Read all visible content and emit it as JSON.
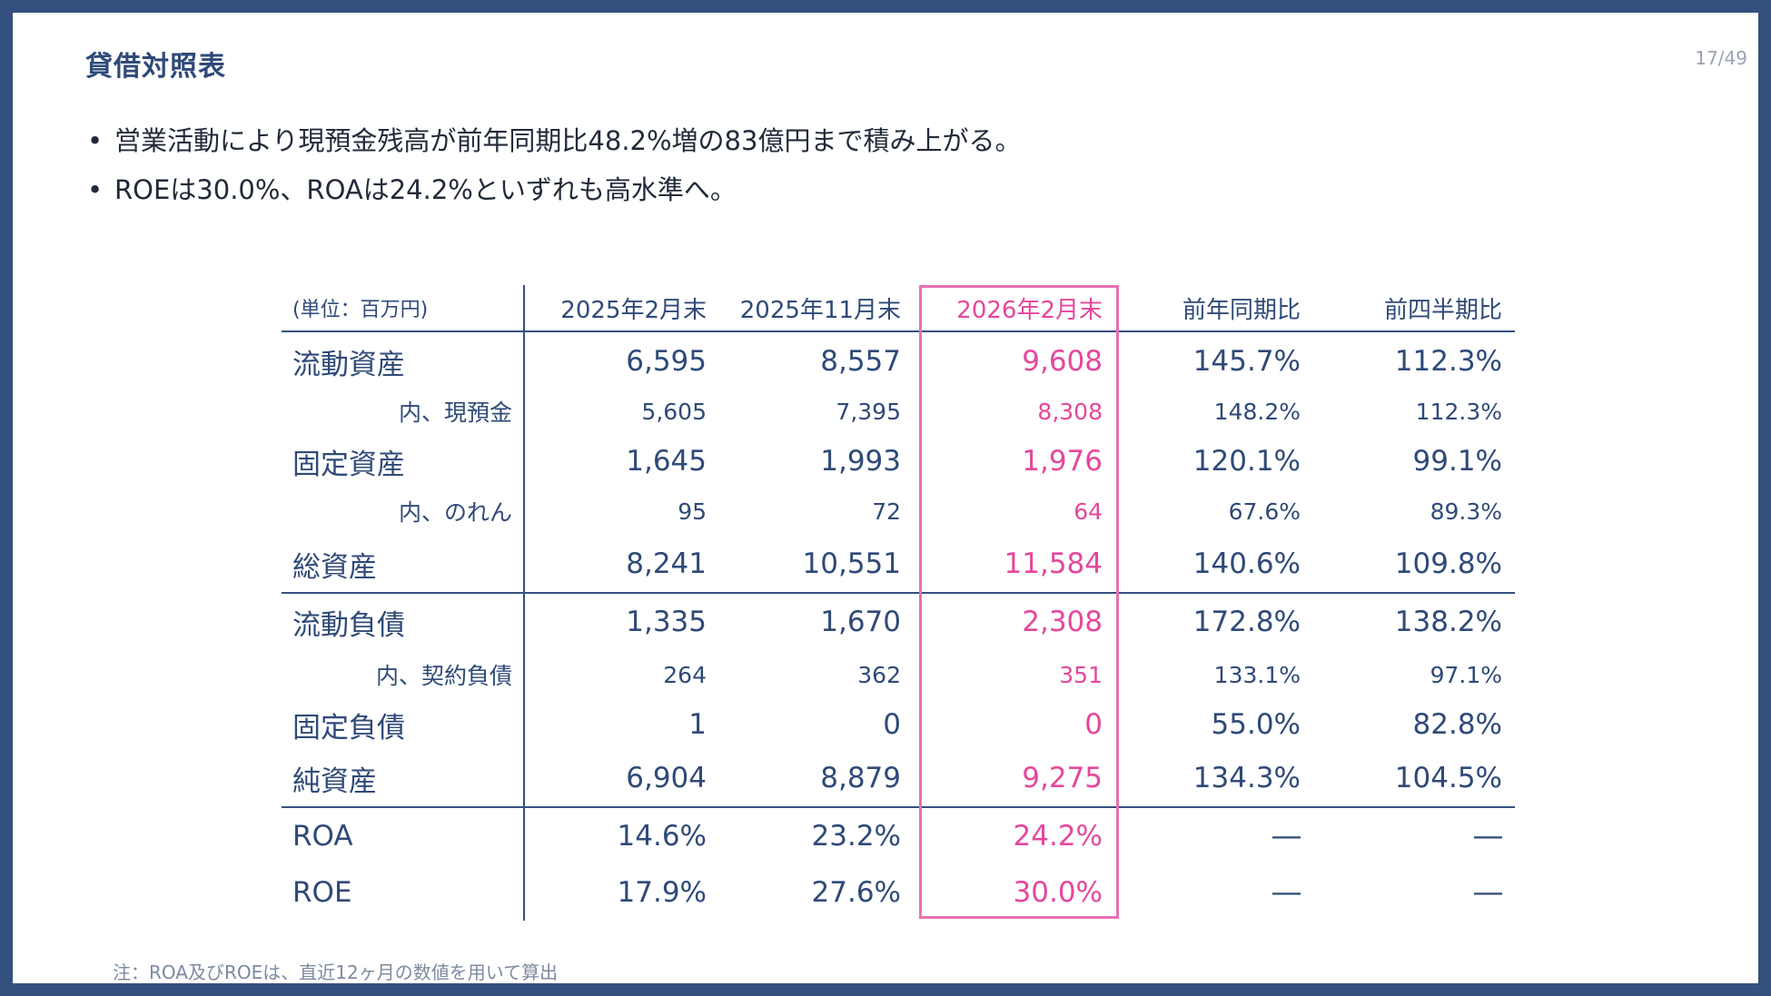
{
  "slide": {
    "title": "貸借対照表",
    "page_number": "17/49",
    "bullets": [
      "営業活動により現預金残高が前年同期比48.2%増の83億円まで積み上がる。",
      "ROEは30.0%、ROAは24.2%といずれも高水準へ。"
    ],
    "bullet_symbol": "•",
    "note": "注：ROA及びROEは、直近12ヶ月の数値を用いて算出"
  },
  "table": {
    "headers": [
      "(単位：百万円)",
      "2025年2月末",
      "2025年11月末",
      "2026年2月末",
      "前年同期比",
      "前四半期比"
    ],
    "rows": [
      {
        "label": "流動資産",
        "v1": "6,595",
        "v2": "8,557",
        "v3": "9,608",
        "yoy": "145.7%",
        "qoq": "112.3%"
      },
      {
        "label": "内、現預金",
        "v1": "5,605",
        "v2": "7,395",
        "v3": "8,308",
        "yoy": "148.2%",
        "qoq": "112.3%"
      },
      {
        "label": "固定資産",
        "v1": "1,645",
        "v2": "1,993",
        "v3": "1,976",
        "yoy": "120.1%",
        "qoq": "99.1%"
      },
      {
        "label": "内、のれん",
        "v1": "95",
        "v2": "72",
        "v3": "64",
        "yoy": "67.6%",
        "qoq": "89.3%"
      },
      {
        "label": "総資産",
        "v1": "8,241",
        "v2": "10,551",
        "v3": "11,584",
        "yoy": "140.6%",
        "qoq": "109.8%"
      },
      {
        "label": "流動負債",
        "v1": "1,335",
        "v2": "1,670",
        "v3": "2,308",
        "yoy": "172.8%",
        "qoq": "138.2%"
      },
      {
        "label": "内、契約負債",
        "v1": "264",
        "v2": "362",
        "v3": "351",
        "yoy": "133.1%",
        "qoq": "97.1%"
      },
      {
        "label": "固定負債",
        "v1": "1",
        "v2": "0",
        "v3": "0",
        "yoy": "55.0%",
        "qoq": "82.8%"
      },
      {
        "label": "純資産",
        "v1": "6,904",
        "v2": "8,879",
        "v3": "9,275",
        "yoy": "134.3%",
        "qoq": "104.5%"
      },
      {
        "label": "ROA",
        "v1": "14.6%",
        "v2": "23.2%",
        "v3": "24.2%",
        "yoy": "―",
        "qoq": "―"
      },
      {
        "label": "ROE",
        "v1": "17.9%",
        "v2": "27.6%",
        "v3": "30.0%",
        "yoy": "―",
        "qoq": "―"
      }
    ]
  },
  "colors": {
    "navy": "#2f4a78",
    "frame": "#34507e",
    "highlight": "#e5479b",
    "highlight_border": "#e772b2"
  }
}
